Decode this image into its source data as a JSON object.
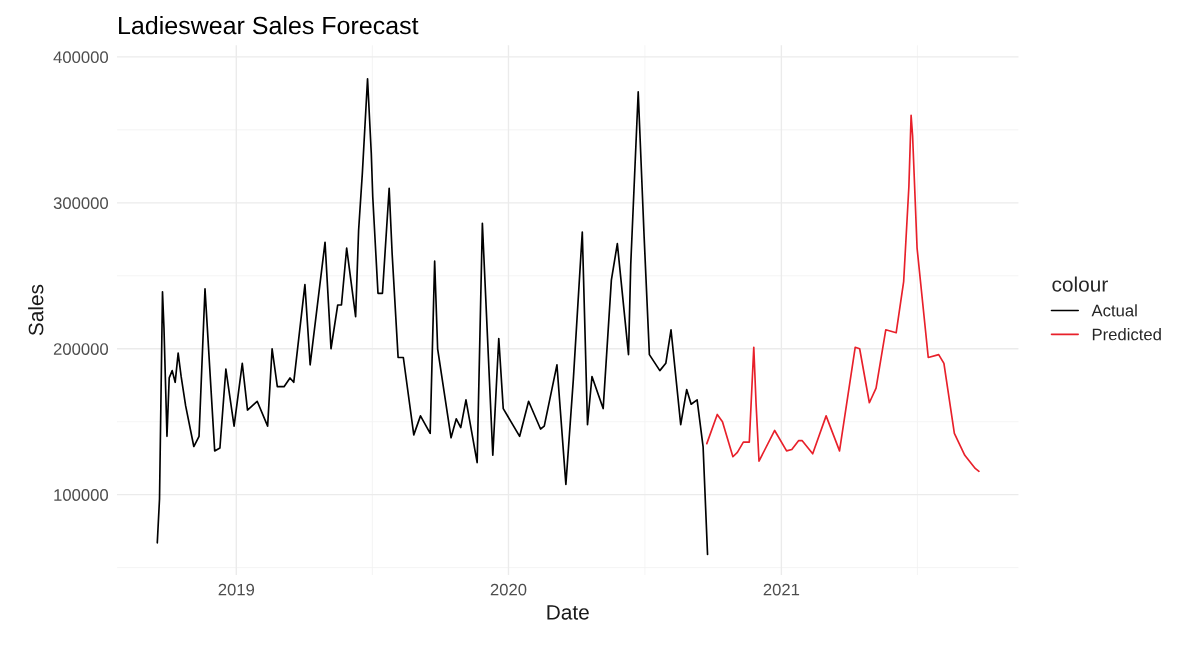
{
  "chart_data": {
    "type": "line",
    "title": "Ladieswear Sales Forecast",
    "xlabel": "Date",
    "ylabel": "Sales",
    "legend_title": "colour",
    "legend": "right",
    "grid": true,
    "xlim": [
      "2018-07-25",
      "2021-11-15"
    ],
    "xticks": [
      "2019",
      "2020",
      "2021"
    ],
    "ylim": [
      45000,
      408000
    ],
    "yticks": [
      100000,
      200000,
      300000,
      400000
    ],
    "series": [
      {
        "name": "Actual",
        "color": "#000000",
        "x": [
          "2018-09-17",
          "2018-09-20",
          "2018-09-24",
          "2018-09-26",
          "2018-09-30",
          "2018-10-03",
          "2018-10-07",
          "2018-10-11",
          "2018-10-15",
          "2018-10-19",
          "2018-10-25",
          "2018-11-05",
          "2018-11-12",
          "2018-11-20",
          "2018-12-03",
          "2018-12-10",
          "2018-12-18",
          "2018-12-29",
          "2019-01-09",
          "2019-01-16",
          "2019-01-29",
          "2019-02-12",
          "2019-02-18",
          "2019-02-25",
          "2019-03-06",
          "2019-03-14",
          "2019-03-19",
          "2019-04-03",
          "2019-04-10",
          "2019-04-30",
          "2019-05-08",
          "2019-05-17",
          "2019-05-22",
          "2019-05-29",
          "2019-06-10",
          "2019-06-14",
          "2019-06-19",
          "2019-06-26",
          "2019-07-01",
          "2019-07-03",
          "2019-07-10",
          "2019-07-16",
          "2019-07-25",
          "2019-07-29",
          "2019-08-06",
          "2019-08-13",
          "2019-08-27",
          "2019-09-05",
          "2019-09-18",
          "2019-09-24",
          "2019-09-28",
          "2019-10-16",
          "2019-10-23",
          "2019-10-29",
          "2019-11-05",
          "2019-11-20",
          "2019-11-27",
          "2019-12-11",
          "2019-12-19",
          "2019-12-25",
          "2020-01-16",
          "2020-01-28",
          "2020-02-13",
          "2020-02-18",
          "2020-03-06",
          "2020-03-18",
          "2020-03-28",
          "2020-04-09",
          "2020-04-16",
          "2020-04-22",
          "2020-05-07",
          "2020-05-18",
          "2020-05-26",
          "2020-06-10",
          "2020-06-13",
          "2020-06-23",
          "2020-07-01",
          "2020-07-08",
          "2020-07-22",
          "2020-07-30",
          "2020-08-06",
          "2020-08-19",
          "2020-08-27",
          "2020-09-02",
          "2020-09-10",
          "2020-09-18",
          "2020-09-24"
        ],
        "values": [
          67000,
          97000,
          239000,
          214000,
          140000,
          180000,
          185000,
          177000,
          197000,
          181000,
          161000,
          133000,
          140000,
          241000,
          130000,
          132000,
          186000,
          147000,
          190000,
          158000,
          164000,
          147000,
          200000,
          174000,
          174000,
          180000,
          177000,
          244000,
          189000,
          273000,
          200000,
          230000,
          230000,
          269000,
          222000,
          281000,
          320000,
          385000,
          334000,
          304000,
          238000,
          238000,
          310000,
          265000,
          194000,
          194000,
          141000,
          154000,
          142000,
          260000,
          200000,
          139000,
          152000,
          146000,
          165000,
          122000,
          286000,
          127000,
          207000,
          159000,
          140000,
          164000,
          145000,
          147000,
          189000,
          107000,
          179000,
          280000,
          148000,
          181000,
          159000,
          247000,
          272000,
          196000,
          258000,
          376000,
          276000,
          196000,
          185000,
          190000,
          213000,
          148000,
          172000,
          162000,
          165000,
          133000,
          59000
        ]
      },
      {
        "name": "Predicted",
        "color": "#e8202a",
        "x": [
          "2020-09-23",
          "2020-10-07",
          "2020-10-14",
          "2020-10-28",
          "2020-11-03",
          "2020-11-11",
          "2020-11-19",
          "2020-11-25",
          "2020-11-28",
          "2020-12-02",
          "2020-12-23",
          "2021-01-08",
          "2021-01-15",
          "2021-01-24",
          "2021-01-29",
          "2021-02-12",
          "2021-03-02",
          "2021-03-20",
          "2021-04-10",
          "2021-04-16",
          "2021-04-29",
          "2021-05-08",
          "2021-05-21",
          "2021-06-04",
          "2021-06-14",
          "2021-06-21",
          "2021-06-24",
          "2021-06-26",
          "2021-07-02",
          "2021-07-17",
          "2021-07-31",
          "2021-08-07",
          "2021-08-21",
          "2021-09-04",
          "2021-09-18",
          "2021-09-23"
        ],
        "values": [
          135000,
          155000,
          150000,
          126000,
          129000,
          136000,
          136000,
          201000,
          163000,
          123000,
          144000,
          130000,
          131000,
          137000,
          137000,
          128000,
          154000,
          130000,
          201000,
          200000,
          163000,
          173000,
          213000,
          211000,
          246000,
          311000,
          360000,
          346000,
          269000,
          194000,
          196000,
          190000,
          142000,
          127000,
          118000,
          116000
        ]
      }
    ]
  }
}
